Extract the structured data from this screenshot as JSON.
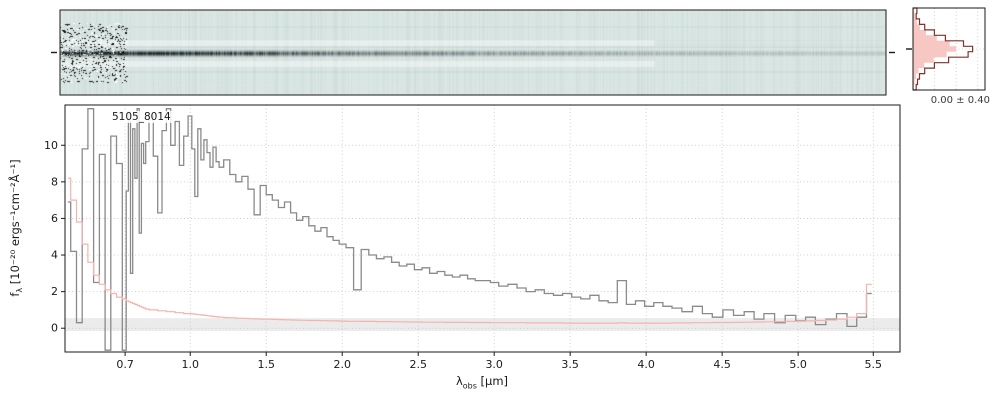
{
  "labels": {
    "object_id": "5105_8014",
    "profile_stats": "0.00 ± 0.40",
    "ylabel_f": "f",
    "ylabel_sub": "λ",
    "ylabel_rest": " [10⁻²⁰ ergs⁻¹cm⁻²Å⁻¹]",
    "xlabel_sym": "λ",
    "xlabel_sub": "obs",
    "xlabel_rest": " [μm]"
  },
  "colors": {
    "flux_line": "#8a8a8a",
    "uncertainty_line": "#f4b3ae",
    "hist_fill": "#f6c7c3",
    "hist_outline": "#7c342b",
    "spec2d_background": "#d9e6e3",
    "grid": "#c4c4c4",
    "axes": "#1a1a1a"
  },
  "chart_data": [
    {
      "id": "spectrum_2d",
      "type": "heatmap",
      "title": "",
      "description": "2D rectified prism spectrum strip: dark source trace along the center row, strongest near 0.7-1.5 μm and fading toward longer wavelengths; strong black/white pixel noise at the blue (left) end; light teal background with faint horizontal detector streaks; small black trace markers at left and right edges.",
      "trace_position": "center row",
      "colors": {
        "background": "#d9e6e3",
        "trace": "#16211f"
      }
    },
    {
      "id": "profile_hist",
      "type": "bar",
      "orientation": "horizontal",
      "caption": "0.00 ± 0.40",
      "stats": {
        "center": 0.0,
        "width": 0.4
      },
      "pink_fill": [
        0.03,
        0.05,
        0.09,
        0.16,
        0.3,
        0.55,
        0.85,
        1.0,
        0.78,
        0.48,
        0.26,
        0.13,
        0.07,
        0.04,
        0.02
      ],
      "dark_outline": [
        0.06,
        0.05,
        0.1,
        0.18,
        0.33,
        0.5,
        0.78,
        0.92,
        0.85,
        0.55,
        0.33,
        0.18,
        0.1,
        0.07,
        0.05
      ],
      "colors": {
        "fill": "#f6c7c3",
        "outline": "#7c342b"
      }
    },
    {
      "id": "spectrum_1d",
      "type": "line",
      "style": "steps-mid",
      "annotation": "5105_8014",
      "xlabel": "λ_obs [μm]",
      "ylabel": "f_λ [10⁻²⁰ ergs⁻¹cm⁻²Å⁻¹]",
      "xlim": [
        0.595,
        5.68
      ],
      "ylim": [
        -1.3,
        12.2
      ],
      "xticks": [
        0.7,
        1.0,
        1.5,
        2.0,
        2.5,
        3.0,
        3.5,
        4.0,
        4.5,
        5.0,
        5.5
      ],
      "xtick_labels": [
        "0.7",
        "1.0",
        "1.5",
        "2.0",
        "2.5",
        "3.0",
        "3.5",
        "4.0",
        "4.5",
        "5.0",
        "5.5"
      ],
      "yticks": [
        0,
        2,
        4,
        6,
        8,
        10
      ],
      "grid": true,
      "legend": "none",
      "x": [
        0.6,
        0.61,
        0.62,
        0.63,
        0.64,
        0.65,
        0.66,
        0.67,
        0.68,
        0.69,
        0.7,
        0.71,
        0.72,
        0.73,
        0.74,
        0.75,
        0.76,
        0.77,
        0.78,
        0.79,
        0.8,
        0.82,
        0.84,
        0.86,
        0.88,
        0.9,
        0.92,
        0.94,
        0.96,
        0.98,
        1.0,
        1.02,
        1.04,
        1.06,
        1.08,
        1.1,
        1.12,
        1.14,
        1.16,
        1.18,
        1.2,
        1.24,
        1.28,
        1.32,
        1.36,
        1.4,
        1.44,
        1.48,
        1.52,
        1.56,
        1.6,
        1.64,
        1.68,
        1.72,
        1.76,
        1.8,
        1.84,
        1.88,
        1.92,
        1.96,
        2.0,
        2.05,
        2.1,
        2.15,
        2.2,
        2.25,
        2.3,
        2.35,
        2.4,
        2.45,
        2.5,
        2.55,
        2.6,
        2.65,
        2.7,
        2.75,
        2.8,
        2.85,
        2.9,
        2.95,
        3.0,
        3.06,
        3.12,
        3.18,
        3.24,
        3.3,
        3.36,
        3.42,
        3.48,
        3.54,
        3.6,
        3.66,
        3.72,
        3.78,
        3.84,
        3.9,
        3.96,
        4.02,
        4.08,
        4.14,
        4.2,
        4.27,
        4.34,
        4.4,
        4.47,
        4.54,
        4.61,
        4.68,
        4.74,
        4.81,
        4.88,
        4.95,
        5.02,
        5.08,
        5.15,
        5.22,
        5.29,
        5.36,
        5.42,
        5.49
      ],
      "series": [
        {
          "name": "flux",
          "color": "#8a8a8a",
          "values": [
            6.9,
            4.2,
            0.3,
            9.8,
            12.0,
            2.5,
            9.5,
            -1.2,
            10.5,
            9.0,
            -1.2,
            7.5,
            11.8,
            3.0,
            10.9,
            8.2,
            12.0,
            5.2,
            10.1,
            9.0,
            10.2,
            11.6,
            9.4,
            6.3,
            10.8,
            12.0,
            10.0,
            11.3,
            8.9,
            10.5,
            11.6,
            9.8,
            7.2,
            10.9,
            9.2,
            10.3,
            9.6,
            8.8,
            9.9,
            9.1,
            8.8,
            9.2,
            8.4,
            8.0,
            8.3,
            7.6,
            6.2,
            7.8,
            7.3,
            7.0,
            6.6,
            6.9,
            6.3,
            5.9,
            6.1,
            5.6,
            5.3,
            5.5,
            5.0,
            4.8,
            4.6,
            4.4,
            2.1,
            4.3,
            4.0,
            3.8,
            3.9,
            3.6,
            3.4,
            3.5,
            3.2,
            3.3,
            3.0,
            3.1,
            2.9,
            2.8,
            2.9,
            2.7,
            2.6,
            2.6,
            2.5,
            2.3,
            2.4,
            2.2,
            2.0,
            2.1,
            1.9,
            1.8,
            1.9,
            1.7,
            1.6,
            1.8,
            1.5,
            1.4,
            2.6,
            1.3,
            1.5,
            1.2,
            1.4,
            1.2,
            1.1,
            0.9,
            1.2,
            0.8,
            0.6,
            1.0,
            0.7,
            0.9,
            0.5,
            0.8,
            0.3,
            0.7,
            0.4,
            0.6,
            0.2,
            0.5,
            0.8,
            0.1,
            0.6,
            1.9
          ]
        },
        {
          "name": "uncertainty",
          "color": "#f4b3ae",
          "values": [
            8.2,
            7.0,
            5.8,
            4.6,
            3.6,
            2.9,
            2.4,
            2.1,
            1.9,
            1.7,
            1.6,
            1.5,
            1.45,
            1.4,
            1.35,
            1.3,
            1.25,
            1.2,
            1.15,
            1.1,
            1.05,
            1.0,
            1.0,
            0.95,
            0.95,
            0.9,
            0.9,
            0.85,
            0.85,
            0.8,
            0.8,
            0.78,
            0.76,
            0.74,
            0.72,
            0.7,
            0.68,
            0.66,
            0.64,
            0.62,
            0.6,
            0.58,
            0.57,
            0.55,
            0.54,
            0.52,
            0.51,
            0.5,
            0.49,
            0.48,
            0.47,
            0.46,
            0.45,
            0.44,
            0.43,
            0.42,
            0.42,
            0.41,
            0.4,
            0.4,
            0.39,
            0.38,
            0.38,
            0.37,
            0.37,
            0.36,
            0.36,
            0.35,
            0.35,
            0.34,
            0.34,
            0.33,
            0.33,
            0.33,
            0.32,
            0.32,
            0.32,
            0.31,
            0.31,
            0.31,
            0.3,
            0.3,
            0.3,
            0.3,
            0.29,
            0.29,
            0.29,
            0.29,
            0.28,
            0.28,
            0.28,
            0.28,
            0.28,
            0.28,
            0.29,
            0.28,
            0.28,
            0.28,
            0.28,
            0.28,
            0.29,
            0.29,
            0.3,
            0.3,
            0.31,
            0.31,
            0.32,
            0.33,
            0.34,
            0.35,
            0.36,
            0.37,
            0.38,
            0.4,
            0.42,
            0.45,
            0.5,
            0.6,
            0.8,
            2.4
          ]
        }
      ]
    }
  ]
}
